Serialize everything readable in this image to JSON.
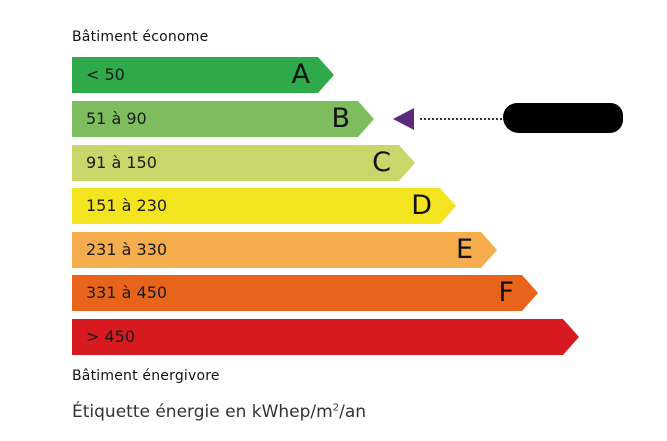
{
  "header": {
    "top_label": "Bâtiment économe",
    "bottom_label": "Bâtiment énergivore"
  },
  "caption": {
    "text_before": "Étiquette énergie en kWhep/m",
    "sup": "2",
    "text_after": "/an"
  },
  "classes": [
    {
      "letter": "A",
      "range": "< 50",
      "color": "#2eaa4a"
    },
    {
      "letter": "B",
      "range": "51 à 90",
      "color": "#7dbd5e"
    },
    {
      "letter": "C",
      "range": "91 à 150",
      "color": "#c9d66a"
    },
    {
      "letter": "D",
      "range": "151 à 230",
      "color": "#f2e51f"
    },
    {
      "letter": "E",
      "range": "231 à 330",
      "color": "#f4ac4c"
    },
    {
      "letter": "F",
      "range": "331 à 450",
      "color": "#e8641b"
    },
    {
      "letter": "",
      "range": "> 450",
      "color": "#d71920"
    }
  ],
  "indicator": {
    "class": "B",
    "color": "#5b2a7f",
    "value_redacted": true
  }
}
